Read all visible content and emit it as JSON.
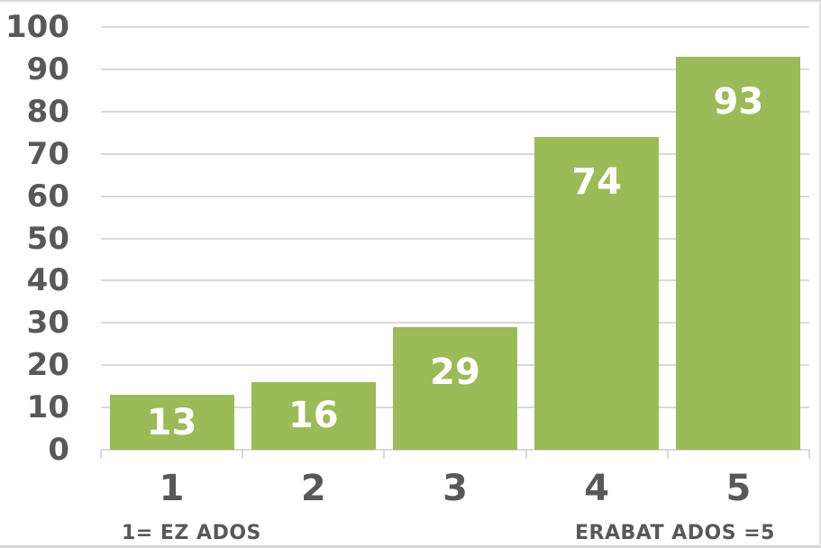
{
  "page": {
    "background": "#FFFFFF",
    "border_color": "#D8D8D8"
  },
  "chart_data": {
    "type": "bar",
    "categories": [
      "1",
      "2",
      "3",
      "4",
      "5"
    ],
    "values": [
      13,
      16,
      29,
      74,
      93
    ],
    "title": "",
    "xlabel": "",
    "ylabel": "",
    "ylim": [
      0,
      100
    ],
    "ytick_step": 10,
    "ytick_labels": [
      "0",
      "10",
      "20",
      "30",
      "40",
      "50",
      "60",
      "70",
      "80",
      "90",
      "100"
    ],
    "grid": "horizontal",
    "legend": "none",
    "bar_color": "#9ABB58",
    "grid_color": "#DADADA",
    "axis_text_color": "#58585A",
    "value_label_color": "#FFFFFF",
    "footnote_left": "1= EZ ADOS",
    "footnote_right": "ERABAT ADOS =5"
  }
}
